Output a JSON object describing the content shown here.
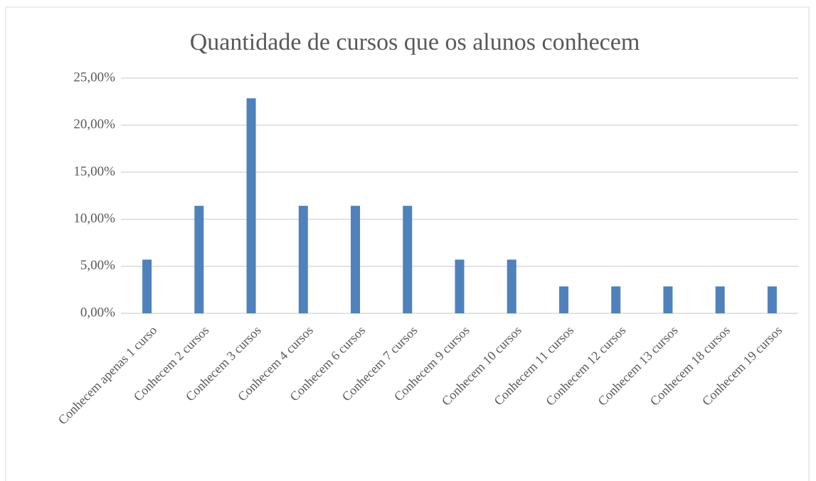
{
  "chart_data": {
    "type": "bar",
    "title": "Quantidade de cursos que os alunos conhecem",
    "categories": [
      "Conhecem apenas 1 curso",
      "Conhecem 2 cursos",
      "Conhecem 3 cursos",
      "Conhecem 4 cursos",
      "Conhecem 6 cursos",
      "Conhecem 7 cursos",
      "Conhecem 9 cursos",
      "Conhecem 10 cursos",
      "Conhecem 11 cursos",
      "Conhecem 12 cursos",
      "Conhecem 13 cursos",
      "Conhecem 18 cursos",
      "Conhecem 19 cursos"
    ],
    "values": [
      5.71,
      11.43,
      22.86,
      11.43,
      11.43,
      11.43,
      5.71,
      5.71,
      2.86,
      2.86,
      2.86,
      2.86,
      2.86
    ],
    "color": "#4f81bd",
    "ylim": [
      0,
      25
    ],
    "yticks": [
      {
        "value": 0,
        "label": "0,00%"
      },
      {
        "value": 5,
        "label": "5,00%"
      },
      {
        "value": 10,
        "label": "10,00%"
      },
      {
        "value": 15,
        "label": "15,00%"
      },
      {
        "value": 20,
        "label": "20,00%"
      },
      {
        "value": 25,
        "label": "25,00%"
      }
    ],
    "grid": true
  }
}
